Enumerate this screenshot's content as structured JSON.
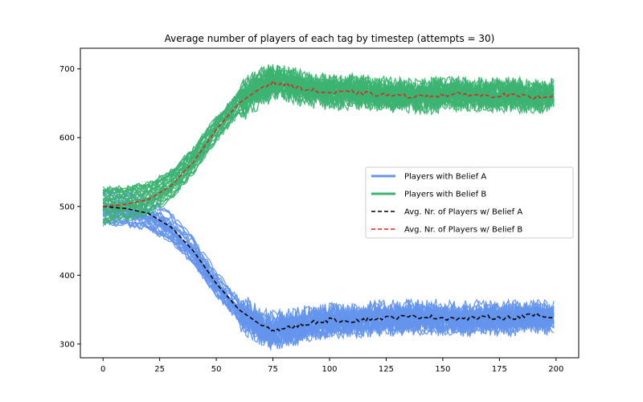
{
  "chart_data": {
    "type": "line",
    "title": "Average number of players of each tag by timestep (attempts = 30)",
    "xlabel": "",
    "ylabel": "",
    "xlim": [
      -10,
      210
    ],
    "ylim": [
      280,
      730
    ],
    "x_ticks": [
      0,
      25,
      50,
      75,
      100,
      125,
      150,
      175,
      200
    ],
    "y_ticks": [
      300,
      400,
      500,
      600,
      700
    ],
    "grid": false,
    "legend_placement": "center-right",
    "attempts": 30,
    "x": [
      0,
      10,
      20,
      30,
      40,
      50,
      60,
      70,
      75,
      80,
      90,
      100,
      110,
      120,
      130,
      140,
      150,
      160,
      170,
      180,
      190,
      199
    ],
    "series": [
      {
        "name": "Avg. Nr. of Players w/ Belief A",
        "color": "#000000",
        "style": "dashed",
        "values": [
          500,
          497,
          490,
          470,
          435,
          388,
          350,
          327,
          320,
          322,
          330,
          335,
          334,
          337,
          339,
          340,
          338,
          337,
          339,
          338,
          342,
          338
        ]
      },
      {
        "name": "Avg. Nr. of Players w/ Belief B",
        "color": "#d62728",
        "style": "dashed",
        "values": [
          500,
          503,
          510,
          530,
          565,
          612,
          650,
          673,
          680,
          678,
          670,
          665,
          666,
          663,
          661,
          660,
          662,
          663,
          661,
          662,
          658,
          662
        ]
      }
    ],
    "bands": [
      {
        "name": "Players with Belief A",
        "color": "#6495ed",
        "runs": 30,
        "spread": 28
      },
      {
        "name": "Players with Belief B",
        "color": "#3cb371",
        "runs": 30,
        "spread": 28
      }
    ],
    "legend": [
      {
        "label": "Players with Belief A",
        "color": "#6495ed",
        "style": "solid"
      },
      {
        "label": "Players with Belief B",
        "color": "#3cb371",
        "style": "solid"
      },
      {
        "label": "Avg. Nr. of Players w/ Belief A",
        "color": "#000000",
        "style": "dashed"
      },
      {
        "label": "Avg. Nr. of Players w/ Belief B",
        "color": "#d62728",
        "style": "dashed"
      }
    ]
  }
}
